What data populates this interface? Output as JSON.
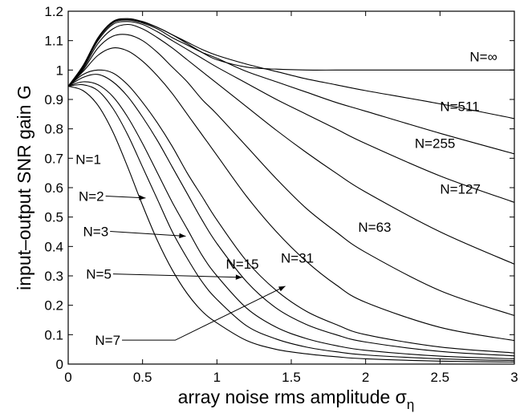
{
  "chart_data": {
    "type": "line",
    "xlabel": "array noise rms amplitude σ",
    "xlabel_subscript": "η",
    "ylabel": "input–output SNR gain G",
    "xlim": [
      0,
      3
    ],
    "ylim": [
      0,
      1.2
    ],
    "xticks": [
      "0",
      "0.5",
      "1",
      "1.5",
      "2",
      "2.5",
      "3"
    ],
    "yticks": [
      "0",
      "0.1",
      "0.2",
      "0.3",
      "0.4",
      "0.5",
      "0.6",
      "0.7",
      "0.8",
      "0.9",
      "1",
      "1.1",
      "1.2"
    ],
    "grid": false,
    "series": [
      {
        "name": "N=1",
        "x": [
          0,
          0.1,
          0.2,
          0.3,
          0.4,
          0.5,
          0.6,
          0.7,
          0.8,
          0.9,
          1.0,
          1.2,
          1.4,
          1.6,
          1.8,
          2.0,
          2.5,
          3.0
        ],
        "y": [
          0.945,
          0.93,
          0.88,
          0.79,
          0.67,
          0.54,
          0.42,
          0.32,
          0.24,
          0.18,
          0.14,
          0.08,
          0.05,
          0.035,
          0.025,
          0.018,
          0.01,
          0.007
        ]
      },
      {
        "name": "N=2",
        "x": [
          0,
          0.1,
          0.2,
          0.3,
          0.4,
          0.5,
          0.6,
          0.7,
          0.8,
          0.9,
          1.0,
          1.2,
          1.4,
          1.6,
          1.8,
          2.0,
          2.5,
          3.0
        ],
        "y": [
          0.945,
          0.95,
          0.93,
          0.87,
          0.78,
          0.67,
          0.56,
          0.45,
          0.36,
          0.28,
          0.22,
          0.13,
          0.085,
          0.058,
          0.042,
          0.031,
          0.018,
          0.012
        ]
      },
      {
        "name": "N=3",
        "x": [
          0,
          0.1,
          0.2,
          0.3,
          0.4,
          0.5,
          0.6,
          0.7,
          0.8,
          0.9,
          1.0,
          1.2,
          1.4,
          1.6,
          1.8,
          2.0,
          2.5,
          3.0
        ],
        "y": [
          0.945,
          0.96,
          0.95,
          0.91,
          0.84,
          0.75,
          0.65,
          0.55,
          0.46,
          0.37,
          0.3,
          0.19,
          0.125,
          0.087,
          0.063,
          0.047,
          0.027,
          0.018
        ]
      },
      {
        "name": "N=5",
        "x": [
          0,
          0.1,
          0.2,
          0.3,
          0.4,
          0.5,
          0.6,
          0.7,
          0.8,
          0.9,
          1.0,
          1.2,
          1.4,
          1.6,
          1.8,
          2.0,
          2.5,
          3.0
        ],
        "y": [
          0.945,
          0.975,
          0.985,
          0.96,
          0.91,
          0.84,
          0.76,
          0.67,
          0.58,
          0.49,
          0.41,
          0.28,
          0.19,
          0.135,
          0.1,
          0.075,
          0.043,
          0.028
        ]
      },
      {
        "name": "N=7",
        "x": [
          0,
          0.1,
          0.2,
          0.3,
          0.4,
          0.5,
          0.6,
          0.7,
          0.8,
          0.9,
          1.0,
          1.2,
          1.4,
          1.6,
          1.8,
          2.0,
          2.5,
          3.0
        ],
        "y": [
          0.945,
          0.985,
          1.0,
          0.99,
          0.95,
          0.89,
          0.82,
          0.74,
          0.65,
          0.57,
          0.49,
          0.35,
          0.25,
          0.18,
          0.135,
          0.1,
          0.058,
          0.038
        ]
      },
      {
        "name": "N=15",
        "x": [
          0,
          0.1,
          0.2,
          0.3,
          0.4,
          0.5,
          0.6,
          0.7,
          0.8,
          0.9,
          1.0,
          1.2,
          1.4,
          1.6,
          1.8,
          2.0,
          2.5,
          3.0
        ],
        "y": [
          0.945,
          0.995,
          1.05,
          1.075,
          1.065,
          1.03,
          0.98,
          0.92,
          0.85,
          0.78,
          0.71,
          0.57,
          0.45,
          0.35,
          0.27,
          0.21,
          0.125,
          0.08
        ]
      },
      {
        "name": "N=31",
        "x": [
          0,
          0.1,
          0.2,
          0.3,
          0.4,
          0.5,
          0.6,
          0.7,
          0.8,
          0.9,
          1.0,
          1.2,
          1.4,
          1.6,
          1.8,
          2.0,
          2.5,
          3.0
        ],
        "y": [
          0.945,
          1.0,
          1.075,
          1.115,
          1.12,
          1.1,
          1.06,
          1.01,
          0.96,
          0.9,
          0.85,
          0.74,
          0.63,
          0.53,
          0.45,
          0.38,
          0.25,
          0.165
        ]
      },
      {
        "name": "N=63",
        "x": [
          0,
          0.1,
          0.2,
          0.3,
          0.4,
          0.5,
          0.6,
          0.7,
          0.8,
          0.9,
          1.0,
          1.2,
          1.4,
          1.6,
          1.8,
          2.0,
          2.5,
          3.0
        ],
        "y": [
          0.945,
          1.005,
          1.09,
          1.14,
          1.155,
          1.14,
          1.11,
          1.075,
          1.035,
          0.995,
          0.955,
          0.875,
          0.795,
          0.72,
          0.65,
          0.585,
          0.45,
          0.34
        ]
      },
      {
        "name": "N=127",
        "x": [
          0,
          0.1,
          0.2,
          0.3,
          0.4,
          0.5,
          0.6,
          0.7,
          0.8,
          0.9,
          1.0,
          1.2,
          1.4,
          1.6,
          1.8,
          2.0,
          2.5,
          3.0
        ],
        "y": [
          0.945,
          1.01,
          1.1,
          1.155,
          1.165,
          1.155,
          1.13,
          1.1,
          1.07,
          1.04,
          1.01,
          0.955,
          0.9,
          0.85,
          0.8,
          0.75,
          0.64,
          0.55
        ]
      },
      {
        "name": "N=255",
        "x": [
          0,
          0.1,
          0.2,
          0.3,
          0.4,
          0.5,
          0.6,
          0.7,
          0.8,
          0.9,
          1.0,
          1.2,
          1.4,
          1.6,
          1.8,
          2.0,
          2.5,
          3.0
        ],
        "y": [
          0.945,
          1.01,
          1.105,
          1.16,
          1.17,
          1.16,
          1.14,
          1.11,
          1.085,
          1.06,
          1.04,
          0.995,
          0.96,
          0.925,
          0.89,
          0.86,
          0.785,
          0.715
        ]
      },
      {
        "name": "N=511",
        "x": [
          0,
          0.1,
          0.2,
          0.3,
          0.4,
          0.5,
          0.6,
          0.7,
          0.8,
          0.9,
          1.0,
          1.2,
          1.4,
          1.6,
          1.8,
          2.0,
          2.5,
          3.0
        ],
        "y": [
          0.945,
          1.015,
          1.108,
          1.163,
          1.172,
          1.163,
          1.145,
          1.12,
          1.095,
          1.07,
          1.05,
          1.02,
          0.995,
          0.97,
          0.95,
          0.93,
          0.885,
          0.835
        ]
      },
      {
        "name": "N=∞",
        "x": [
          0,
          0.1,
          0.2,
          0.3,
          0.4,
          0.5,
          0.6,
          0.7,
          0.8,
          0.9,
          1.0,
          1.2,
          1.4,
          1.6,
          1.8,
          2.0,
          2.5,
          3.0
        ],
        "y": [
          0.945,
          1.015,
          1.11,
          1.165,
          1.175,
          1.165,
          1.145,
          1.12,
          1.09,
          1.06,
          1.035,
          1.01,
          1.003,
          1.0,
          1.0,
          1.0,
          1.0,
          1.0
        ]
      }
    ],
    "annotations": [
      {
        "label": "N=∞",
        "x": 2.7,
        "y": 1.03
      },
      {
        "label": "N=511",
        "x": 2.5,
        "y": 0.86
      },
      {
        "label": "N=255",
        "x": 2.33,
        "y": 0.735
      },
      {
        "label": "N=127",
        "x": 2.5,
        "y": 0.58
      },
      {
        "label": "N=63",
        "x": 1.95,
        "y": 0.45
      },
      {
        "label": "N=31",
        "x": 1.43,
        "y": 0.345
      },
      {
        "label": "N=15",
        "x": 1.06,
        "y": 0.325
      },
      {
        "label": "N=1",
        "x": 0.05,
        "y": 0.68
      },
      {
        "label": "N=2",
        "x": 0.07,
        "y": 0.555,
        "arrow_to": [
          0.52,
          0.565
        ]
      },
      {
        "label": "N=3",
        "x": 0.1,
        "y": 0.435,
        "arrow_to": [
          0.79,
          0.435
        ]
      },
      {
        "label": "N=5",
        "x": 0.12,
        "y": 0.29,
        "arrow_to": [
          1.17,
          0.295
        ]
      },
      {
        "label": "N=7",
        "x": 0.18,
        "y": 0.065,
        "arrow_to": [
          1.46,
          0.265
        ]
      }
    ]
  }
}
